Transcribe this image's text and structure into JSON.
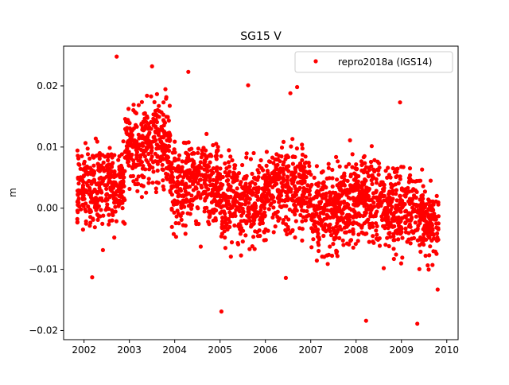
{
  "chart_data": {
    "type": "scatter",
    "title": "SG15 V",
    "xlabel": "",
    "ylabel": "m",
    "xlim": [
      2001.55,
      2010.25
    ],
    "ylim": [
      -0.0215,
      0.0265
    ],
    "x_ticks": [
      2002,
      2003,
      2004,
      2005,
      2006,
      2007,
      2008,
      2009,
      2010
    ],
    "x_tick_labels": [
      "2002",
      "2003",
      "2004",
      "2005",
      "2006",
      "2007",
      "2008",
      "2009",
      "2010"
    ],
    "y_ticks": [
      -0.02,
      -0.01,
      0.0,
      0.01,
      0.02
    ],
    "y_tick_labels": [
      "−0.02",
      "−0.01",
      "0.00",
      "0.01",
      "0.02"
    ],
    "grid": false,
    "legend_position": "top-right",
    "series": [
      {
        "name": "repro2018a (IGS14)",
        "color": "#ff0000",
        "marker": "circle",
        "trend_segments": [
          {
            "x_start": 2001.85,
            "x_end": 2002.9,
            "mean": 0.0035,
            "spread": 0.0045
          },
          {
            "x_start": 2002.9,
            "x_end": 2003.9,
            "mean": 0.0105,
            "spread": 0.0045
          },
          {
            "x_start": 2003.9,
            "x_end": 2005.0,
            "mean": 0.0045,
            "spread": 0.0045
          },
          {
            "x_start": 2005.0,
            "x_end": 2006.0,
            "mean": 0.001,
            "spread": 0.0045
          },
          {
            "x_start": 2006.0,
            "x_end": 2007.0,
            "mean": 0.0035,
            "spread": 0.0045
          },
          {
            "x_start": 2007.0,
            "x_end": 2007.6,
            "mean": -0.0005,
            "spread": 0.0045
          },
          {
            "x_start": 2007.6,
            "x_end": 2008.6,
            "mean": 0.0015,
            "spread": 0.0045
          },
          {
            "x_start": 2008.6,
            "x_end": 2009.5,
            "mean": 0.0,
            "spread": 0.0045
          },
          {
            "x_start": 2009.5,
            "x_end": 2009.82,
            "mean": -0.003,
            "spread": 0.0035
          }
        ],
        "notable_points": [
          {
            "x": 2002.72,
            "y": 0.0248
          },
          {
            "x": 2003.5,
            "y": 0.0232
          },
          {
            "x": 2004.3,
            "y": 0.0223
          },
          {
            "x": 2005.62,
            "y": 0.0201
          },
          {
            "x": 2006.55,
            "y": 0.0188
          },
          {
            "x": 2006.7,
            "y": 0.0198
          },
          {
            "x": 2008.97,
            "y": 0.0173
          },
          {
            "x": 2002.18,
            "y": -0.0113
          },
          {
            "x": 2005.03,
            "y": -0.0169
          },
          {
            "x": 2006.45,
            "y": -0.0114
          },
          {
            "x": 2008.22,
            "y": -0.0184
          },
          {
            "x": 2009.35,
            "y": -0.0189
          },
          {
            "x": 2009.8,
            "y": -0.0133
          }
        ],
        "approx_point_count": 2600
      }
    ]
  }
}
